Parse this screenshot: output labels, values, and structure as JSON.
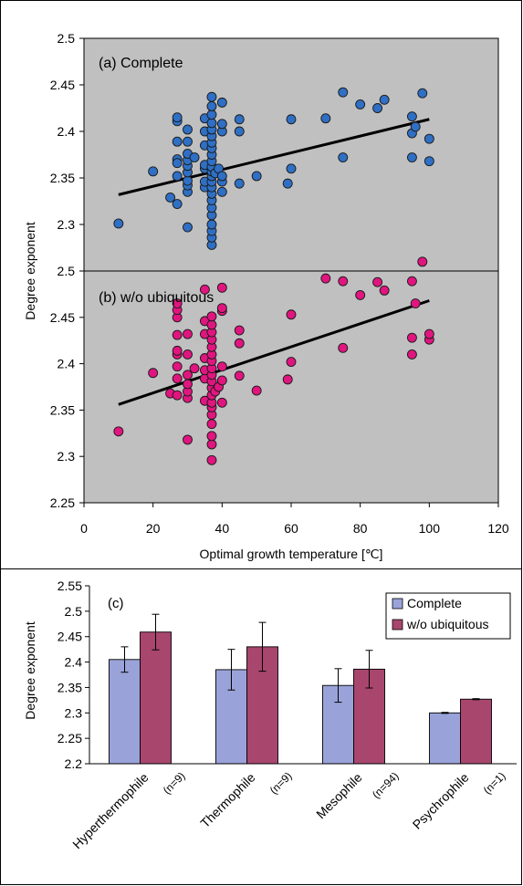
{
  "colors": {
    "plot_bg": "#c0c0c0",
    "complete_points": "#2f6fc4",
    "ubiquitous_points": "#e0157f",
    "bar_complete": "#9aa3d9",
    "bar_ubiquitous": "#a8466e",
    "fit_line": "#000000"
  },
  "chart_data": [
    {
      "type": "scatter",
      "panel_label": "(a) Complete",
      "ylabel": "Degree exponent",
      "xlabel": "Optimal growth temperature [℃]",
      "xlim": [
        0,
        120
      ],
      "ylim": [
        2.25,
        2.5
      ],
      "y_ticks": [
        "2.5",
        "2.45",
        "2.4",
        "2.35",
        "2.3"
      ],
      "x_ticks": [
        "0",
        "20",
        "40",
        "60",
        "80",
        "100",
        "120"
      ],
      "fit_line": [
        [
          10,
          2.332
        ],
        [
          100,
          2.413
        ]
      ],
      "points": [
        [
          10,
          2.301
        ],
        [
          20,
          2.357
        ],
        [
          25,
          2.329
        ],
        [
          27,
          2.322
        ],
        [
          27,
          2.352
        ],
        [
          27,
          2.37
        ],
        [
          27,
          2.366
        ],
        [
          27,
          2.389
        ],
        [
          27,
          2.411
        ],
        [
          27,
          2.415
        ],
        [
          30,
          2.297
        ],
        [
          30,
          2.335
        ],
        [
          30,
          2.342
        ],
        [
          30,
          2.347
        ],
        [
          30,
          2.356
        ],
        [
          30,
          2.363
        ],
        [
          30,
          2.369
        ],
        [
          30,
          2.376
        ],
        [
          30,
          2.389
        ],
        [
          30,
          2.402
        ],
        [
          32,
          2.372
        ],
        [
          35,
          2.34
        ],
        [
          35,
          2.346
        ],
        [
          35,
          2.36
        ],
        [
          35,
          2.364
        ],
        [
          35,
          2.385
        ],
        [
          35,
          2.4
        ],
        [
          35,
          2.414
        ],
        [
          37,
          2.278
        ],
        [
          37,
          2.286
        ],
        [
          37,
          2.293
        ],
        [
          37,
          2.3
        ],
        [
          37,
          2.31
        ],
        [
          37,
          2.318
        ],
        [
          37,
          2.326
        ],
        [
          37,
          2.333
        ],
        [
          37,
          2.34
        ],
        [
          37,
          2.346
        ],
        [
          37,
          2.352
        ],
        [
          37,
          2.357
        ],
        [
          37,
          2.362
        ],
        [
          37,
          2.368
        ],
        [
          37,
          2.375
        ],
        [
          37,
          2.382
        ],
        [
          37,
          2.388
        ],
        [
          37,
          2.395
        ],
        [
          37,
          2.402
        ],
        [
          37,
          2.409
        ],
        [
          37,
          2.418
        ],
        [
          37,
          2.427
        ],
        [
          37,
          2.437
        ],
        [
          38,
          2.355
        ],
        [
          39,
          2.36
        ],
        [
          40,
          2.335
        ],
        [
          40,
          2.346
        ],
        [
          40,
          2.352
        ],
        [
          40,
          2.4
        ],
        [
          40,
          2.408
        ],
        [
          40,
          2.431
        ],
        [
          45,
          2.344
        ],
        [
          45,
          2.4
        ],
        [
          45,
          2.413
        ],
        [
          50,
          2.352
        ],
        [
          59,
          2.344
        ],
        [
          60,
          2.36
        ],
        [
          60,
          2.413
        ],
        [
          70,
          2.414
        ],
        [
          75,
          2.372
        ],
        [
          75,
          2.442
        ],
        [
          80,
          2.429
        ],
        [
          85,
          2.425
        ],
        [
          87,
          2.434
        ],
        [
          95,
          2.372
        ],
        [
          95,
          2.398
        ],
        [
          95,
          2.416
        ],
        [
          96,
          2.405
        ],
        [
          98,
          2.441
        ],
        [
          100,
          2.368
        ],
        [
          100,
          2.392
        ]
      ]
    },
    {
      "type": "scatter",
      "panel_label": "(b) w/o ubiquitous",
      "ylabel": "Degree exponent",
      "xlabel": "Optimal growth temperature [℃]",
      "xlim": [
        0,
        120
      ],
      "ylim": [
        2.25,
        2.5
      ],
      "y_ticks": [
        "2.5",
        "2.45",
        "2.4",
        "2.35",
        "2.3",
        "2.25"
      ],
      "x_ticks": [
        "0",
        "20",
        "40",
        "60",
        "80",
        "100",
        "120"
      ],
      "fit_line": [
        [
          10,
          2.356
        ],
        [
          100,
          2.468
        ]
      ],
      "points": [
        [
          10,
          2.327
        ],
        [
          20,
          2.39
        ],
        [
          25,
          2.368
        ],
        [
          27,
          2.366
        ],
        [
          27,
          2.384
        ],
        [
          27,
          2.397
        ],
        [
          27,
          2.41
        ],
        [
          27,
          2.414
        ],
        [
          27,
          2.431
        ],
        [
          27,
          2.45
        ],
        [
          27,
          2.458
        ],
        [
          27,
          2.465
        ],
        [
          30,
          2.318
        ],
        [
          30,
          2.363
        ],
        [
          30,
          2.37
        ],
        [
          30,
          2.378
        ],
        [
          30,
          2.388
        ],
        [
          30,
          2.41
        ],
        [
          30,
          2.432
        ],
        [
          32,
          2.395
        ],
        [
          35,
          2.36
        ],
        [
          35,
          2.384
        ],
        [
          35,
          2.393
        ],
        [
          35,
          2.406
        ],
        [
          35,
          2.432
        ],
        [
          35,
          2.446
        ],
        [
          35,
          2.48
        ],
        [
          37,
          2.296
        ],
        [
          37,
          2.313
        ],
        [
          37,
          2.322
        ],
        [
          37,
          2.335
        ],
        [
          37,
          2.345
        ],
        [
          37,
          2.353
        ],
        [
          37,
          2.358
        ],
        [
          37,
          2.366
        ],
        [
          37,
          2.374
        ],
        [
          37,
          2.381
        ],
        [
          37,
          2.388
        ],
        [
          37,
          2.395
        ],
        [
          37,
          2.403
        ],
        [
          37,
          2.41
        ],
        [
          37,
          2.418
        ],
        [
          37,
          2.426
        ],
        [
          37,
          2.434
        ],
        [
          37,
          2.442
        ],
        [
          37,
          2.451
        ],
        [
          38,
          2.37
        ],
        [
          39,
          2.375
        ],
        [
          40,
          2.358
        ],
        [
          40,
          2.382
        ],
        [
          40,
          2.397
        ],
        [
          40,
          2.457
        ],
        [
          40,
          2.46
        ],
        [
          40,
          2.482
        ],
        [
          45,
          2.387
        ],
        [
          45,
          2.422
        ],
        [
          45,
          2.436
        ],
        [
          50,
          2.371
        ],
        [
          59,
          2.383
        ],
        [
          60,
          2.402
        ],
        [
          60,
          2.453
        ],
        [
          70,
          2.492
        ],
        [
          75,
          2.417
        ],
        [
          75,
          2.489
        ],
        [
          80,
          2.474
        ],
        [
          85,
          2.488
        ],
        [
          87,
          2.479
        ],
        [
          95,
          2.41
        ],
        [
          95,
          2.428
        ],
        [
          95,
          2.489
        ],
        [
          96,
          2.465
        ],
        [
          98,
          2.51
        ],
        [
          100,
          2.426
        ],
        [
          100,
          2.432
        ]
      ]
    },
    {
      "type": "bar",
      "panel_label": "(c)",
      "ylabel": "Degree exponent",
      "ylim": [
        2.2,
        2.55
      ],
      "y_ticks": [
        "2.55",
        "2.5",
        "2.45",
        "2.4",
        "2.35",
        "2.3",
        "2.25",
        "2.2"
      ],
      "categories": [
        "Hyperthermophile",
        "Thermophile",
        "Mesophile",
        "Psychrophile"
      ],
      "category_counts": [
        "(n=9)",
        "(n=9)",
        "(n=94)",
        "(n=1)"
      ],
      "legend_position": "top-right",
      "series": [
        {
          "name": "Complete",
          "values": [
            2.405,
            2.385,
            2.354,
            2.3
          ],
          "errors": [
            0.025,
            0.04,
            0.033,
            0.001
          ]
        },
        {
          "name": "w/o ubiquitous",
          "values": [
            2.459,
            2.43,
            2.386,
            2.327
          ],
          "errors": [
            0.035,
            0.048,
            0.037,
            0.001
          ]
        }
      ]
    }
  ]
}
